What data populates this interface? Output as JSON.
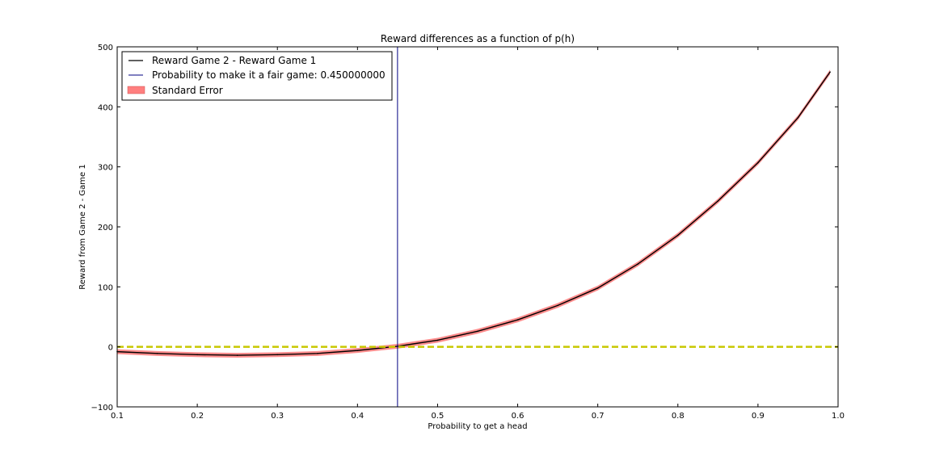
{
  "chart_data": {
    "type": "line",
    "title": "Reward differences as a function of p(h)",
    "xlabel": "Probability to get a head",
    "ylabel": "Reward from Game 2 - Game 1",
    "xlim": [
      0.1,
      1.0
    ],
    "ylim": [
      -100,
      500
    ],
    "xticks": [
      "0.1",
      "0.2",
      "0.3",
      "0.4",
      "0.5",
      "0.6",
      "0.7",
      "0.8",
      "0.9",
      "1.0"
    ],
    "yticks": [
      "−100",
      "0",
      "100",
      "200",
      "300",
      "400",
      "500"
    ],
    "xtick_values": [
      0.1,
      0.2,
      0.3,
      0.4,
      0.5,
      0.6,
      0.7,
      0.8,
      0.9,
      1.0
    ],
    "ytick_values": [
      -100,
      0,
      100,
      200,
      300,
      400,
      500
    ],
    "series": [
      {
        "name": "Reward Game 2 - Reward Game 1",
        "color": "#000000",
        "x": [
          0.1,
          0.15,
          0.2,
          0.25,
          0.3,
          0.35,
          0.4,
          0.45,
          0.5,
          0.55,
          0.6,
          0.65,
          0.7,
          0.75,
          0.8,
          0.85,
          0.9,
          0.95,
          0.99
        ],
        "y": [
          -8,
          -11,
          -13,
          -14,
          -13,
          -11,
          -6,
          1,
          11,
          26,
          45,
          69,
          98,
          138,
          186,
          243,
          307,
          382,
          458
        ],
        "std_error": 4
      }
    ],
    "vertical_line": {
      "name": "Probability to make it a fair game: 0.450000000",
      "x": 0.45,
      "color": "#000080"
    },
    "reference_line": {
      "y": 0,
      "color": "#c8c800",
      "style": "dashed"
    },
    "error_band": {
      "name": "Standard Error",
      "color": "#ff7f7f"
    },
    "legend_position": "upper-left",
    "grid": false
  }
}
